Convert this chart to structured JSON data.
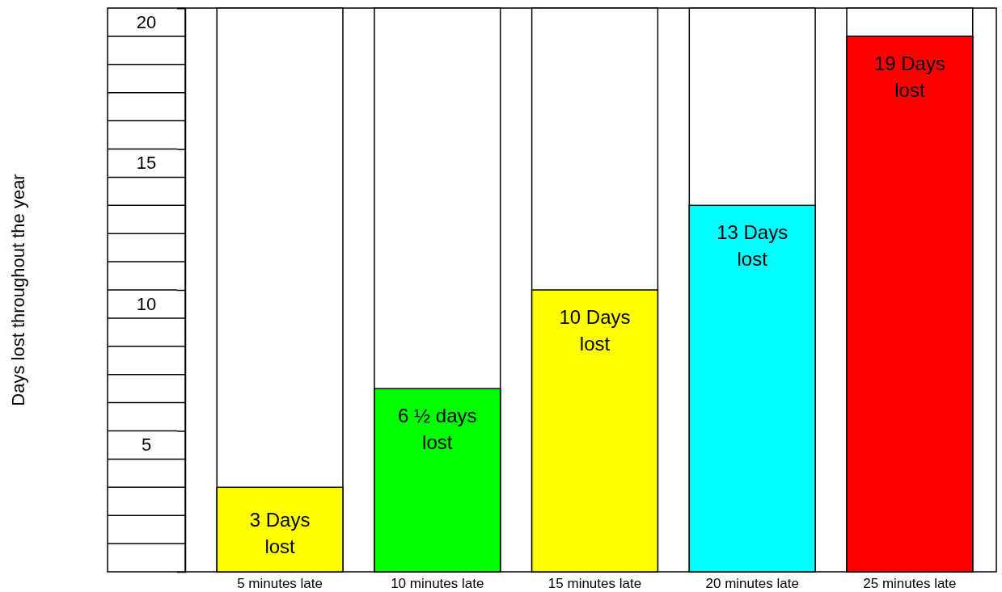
{
  "chart_data": {
    "type": "bar",
    "ylabel": "Days lost throughout the year",
    "categories": [
      "5 minutes late",
      "10 minutes late",
      "15 minutes late",
      "20 minutes late",
      "25 minutes late"
    ],
    "values": [
      3,
      6.5,
      10,
      13,
      19
    ],
    "colors": [
      "#ffff00",
      "#00ff00",
      "#ffff00",
      "#00ffff",
      "#ff0000"
    ],
    "value_labels": [
      "3 Days lost",
      "6 ½ days lost",
      "10 Days lost",
      "13 Days lost",
      "19 Days lost"
    ],
    "ylim": [
      0,
      20
    ],
    "yticks": [
      5,
      10,
      15,
      20
    ],
    "grid": false,
    "legend": false
  }
}
